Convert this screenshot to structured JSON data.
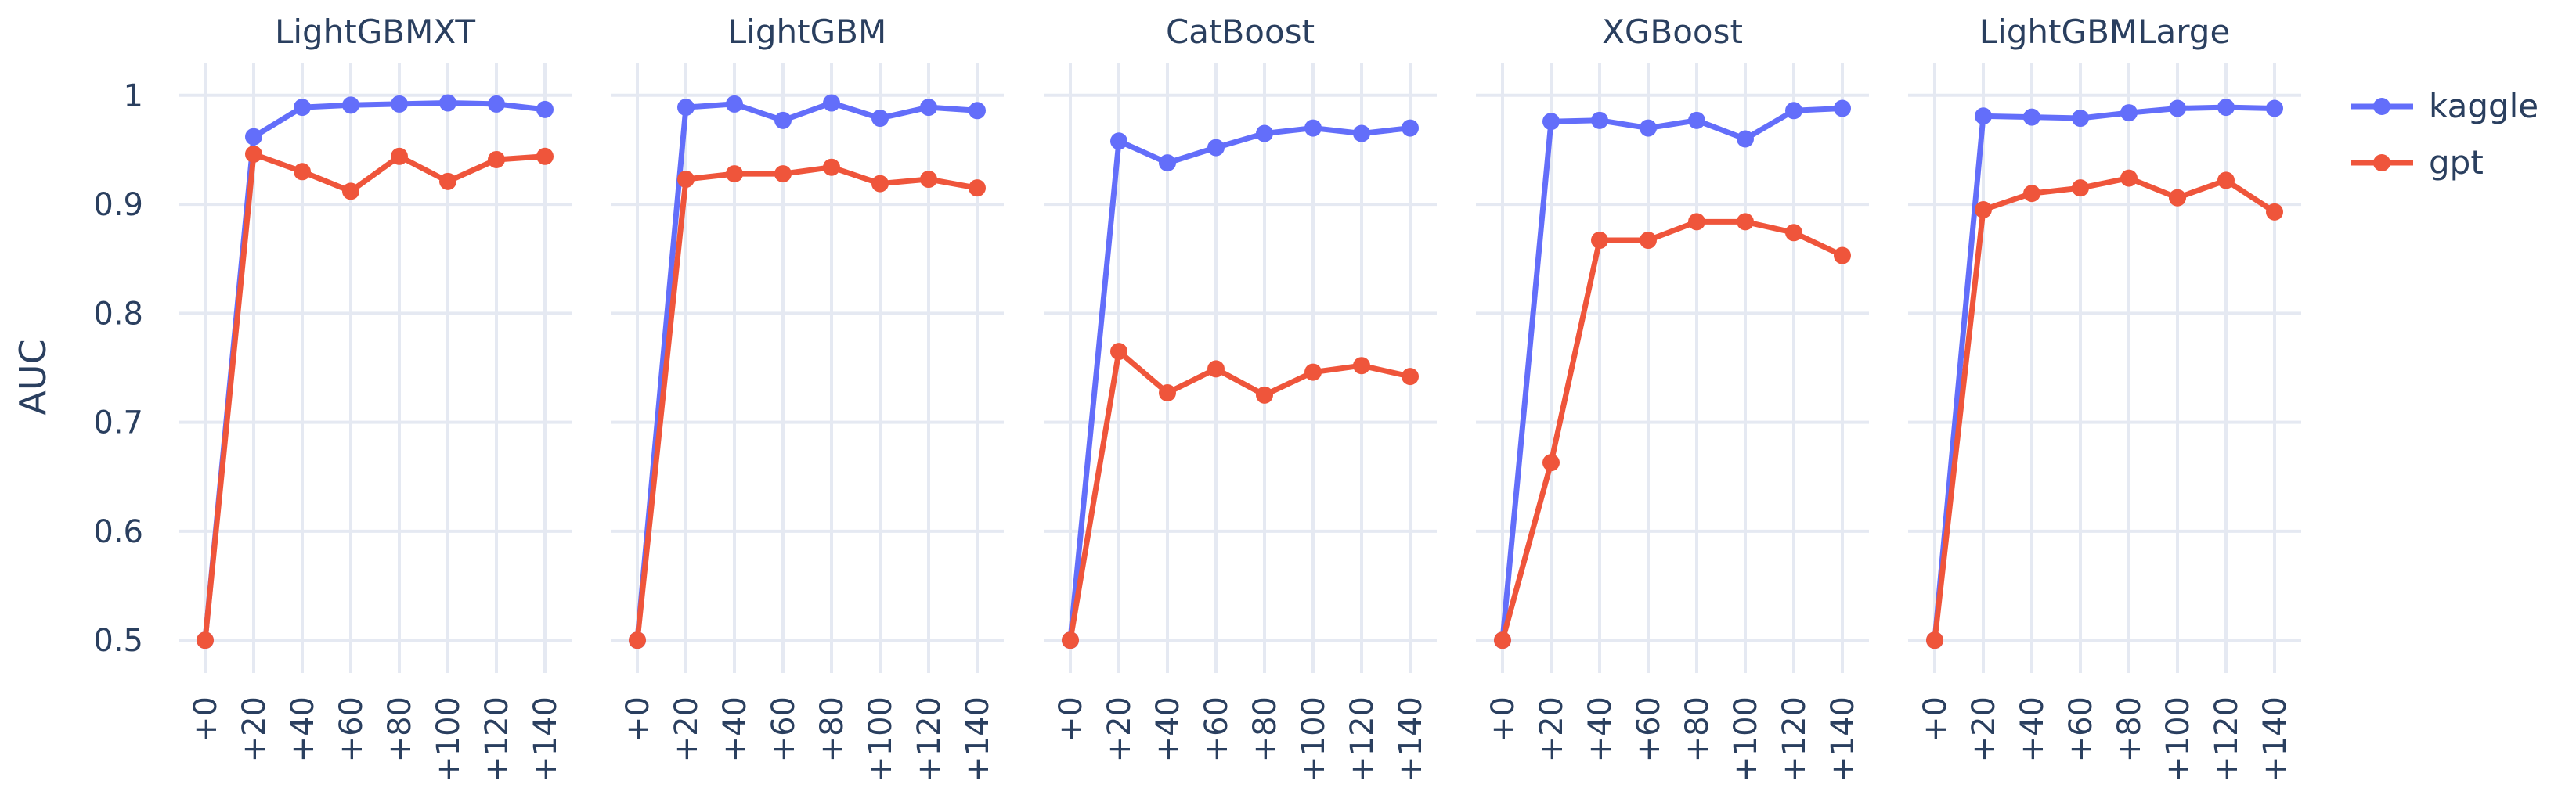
{
  "chart_data": {
    "type": "line",
    "ylabel": "AUC",
    "ylim": [
      0.47,
      1.03
    ],
    "yticks": [
      0.5,
      0.6,
      0.7,
      0.8,
      0.9,
      1
    ],
    "ytick_labels": [
      "0.5",
      "0.6",
      "0.7",
      "0.8",
      "0.9",
      "1"
    ],
    "x": [
      "+0",
      "+20",
      "+40",
      "+60",
      "+80",
      "+100",
      "+120",
      "+140"
    ],
    "grid": true,
    "legend_position": "top-right",
    "legend": [
      {
        "name": "kaggle",
        "color": "#636efa"
      },
      {
        "name": "gpt",
        "color": "#ef553b"
      }
    ],
    "panels": [
      {
        "title": "LightGBMXT",
        "series": [
          {
            "name": "kaggle",
            "values": [
              0.5,
              0.962,
              0.989,
              0.991,
              0.992,
              0.993,
              0.992,
              0.987
            ]
          },
          {
            "name": "gpt",
            "values": [
              0.5,
              0.946,
              0.93,
              0.912,
              0.944,
              0.921,
              0.941,
              0.944
            ]
          }
        ]
      },
      {
        "title": "LightGBM",
        "series": [
          {
            "name": "kaggle",
            "values": [
              0.5,
              0.989,
              0.992,
              0.977,
              0.993,
              0.979,
              0.989,
              0.986
            ]
          },
          {
            "name": "gpt",
            "values": [
              0.5,
              0.923,
              0.928,
              0.928,
              0.934,
              0.919,
              0.923,
              0.915
            ]
          }
        ]
      },
      {
        "title": "CatBoost",
        "series": [
          {
            "name": "kaggle",
            "values": [
              0.5,
              0.958,
              0.938,
              0.952,
              0.965,
              0.97,
              0.965,
              0.97
            ]
          },
          {
            "name": "gpt",
            "values": [
              0.5,
              0.765,
              0.727,
              0.749,
              0.725,
              0.746,
              0.752,
              0.742
            ]
          }
        ]
      },
      {
        "title": "XGBoost",
        "series": [
          {
            "name": "kaggle",
            "values": [
              0.5,
              0.976,
              0.977,
              0.97,
              0.977,
              0.96,
              0.986,
              0.988
            ]
          },
          {
            "name": "gpt",
            "values": [
              0.5,
              0.663,
              0.867,
              0.867,
              0.884,
              0.884,
              0.874,
              0.853
            ]
          }
        ]
      },
      {
        "title": "LightGBMLarge",
        "series": [
          {
            "name": "kaggle",
            "values": [
              0.5,
              0.981,
              0.98,
              0.979,
              0.984,
              0.988,
              0.989,
              0.988
            ]
          },
          {
            "name": "gpt",
            "values": [
              0.5,
              0.895,
              0.91,
              0.915,
              0.924,
              0.906,
              0.922,
              0.893
            ]
          }
        ]
      }
    ]
  }
}
